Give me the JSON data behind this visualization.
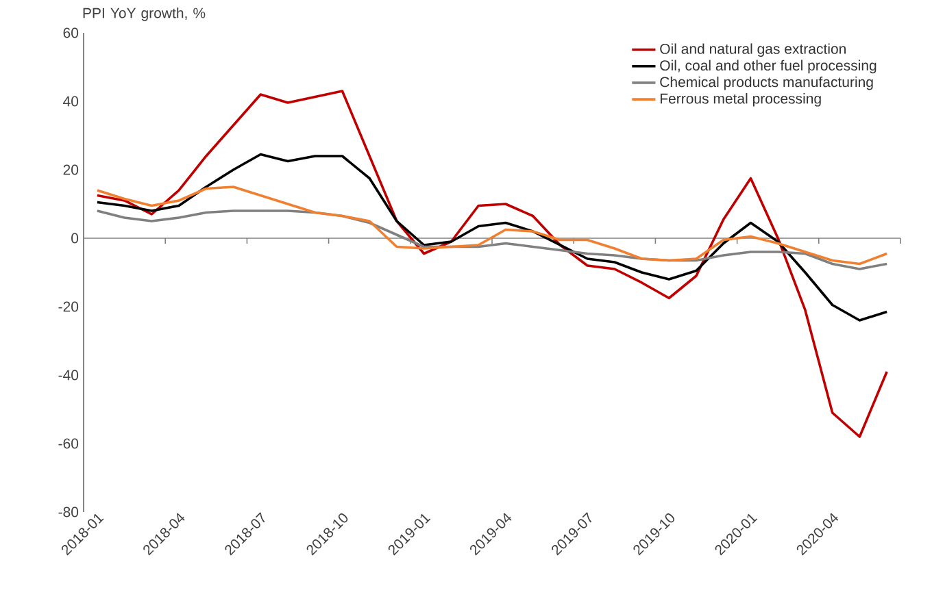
{
  "chart_data": {
    "type": "line",
    "ylabel": "PPI  YoY growth, %",
    "categories": [
      "2018-01",
      null,
      null,
      "2018-04",
      null,
      null,
      "2018-07",
      null,
      null,
      "2018-10",
      null,
      null,
      "2019-01",
      null,
      null,
      "2019-04",
      null,
      null,
      "2019-07",
      null,
      null,
      "2019-10",
      null,
      null,
      "2020-01",
      null,
      null,
      "2020-04",
      null,
      null
    ],
    "series": [
      {
        "name": "Oil and natural gas extraction",
        "color": "#c00000",
        "values": [
          12.5,
          11,
          7,
          14,
          24,
          33,
          42,
          39.6,
          41.3,
          43,
          24,
          5,
          -4.5,
          -1,
          9.5,
          10,
          6.5,
          -2,
          -8,
          -9,
          -13,
          -17.5,
          -11,
          5.5,
          17.5,
          0,
          -21,
          -51,
          -58,
          -39
        ]
      },
      {
        "name": "Oil, coal and other fuel processing",
        "color": "#000000",
        "values": [
          10.5,
          9.5,
          8,
          9.5,
          15,
          20,
          24.5,
          22.5,
          24,
          24,
          17.5,
          5,
          -2,
          -1,
          3.5,
          4.5,
          2,
          -2,
          -6,
          -7,
          -10,
          -12,
          -9.5,
          -1.5,
          4.5,
          -1,
          -10,
          -19.5,
          -24,
          -21.5
        ]
      },
      {
        "name": "Chemical products manufacturing",
        "color": "#808080",
        "values": [
          8,
          6,
          5,
          6,
          7.5,
          8,
          8,
          8,
          7.5,
          6.5,
          4.5,
          1,
          -2.5,
          -2.5,
          -2.5,
          -1.5,
          -2.5,
          -3.5,
          -4.5,
          -5,
          -6,
          -6.5,
          -6.5,
          -5,
          -4,
          -4,
          -4.5,
          -7.5,
          -9,
          -7.5
        ]
      },
      {
        "name": "Ferrous metal processing",
        "color": "#f08030",
        "values": [
          14,
          11.5,
          9.5,
          11,
          14.5,
          15,
          12.5,
          10,
          7.5,
          6.5,
          5,
          -2.5,
          -3,
          -2.5,
          -2,
          2.5,
          2,
          -0.5,
          -0.5,
          -3,
          -6,
          -6.5,
          -6,
          -0.5,
          0.5,
          -1.5,
          -4,
          -6.5,
          -7.5,
          -4.5
        ]
      }
    ],
    "ylim": [
      -80,
      60
    ],
    "yticks": [
      -80,
      -60,
      -40,
      -20,
      0,
      20,
      40,
      60
    ],
    "ref_lines": [
      {
        "axis": "y",
        "value": 0,
        "color": "#808080"
      }
    ],
    "legend": "top right",
    "grid": false,
    "marker": "none",
    "line_style": "solid"
  }
}
